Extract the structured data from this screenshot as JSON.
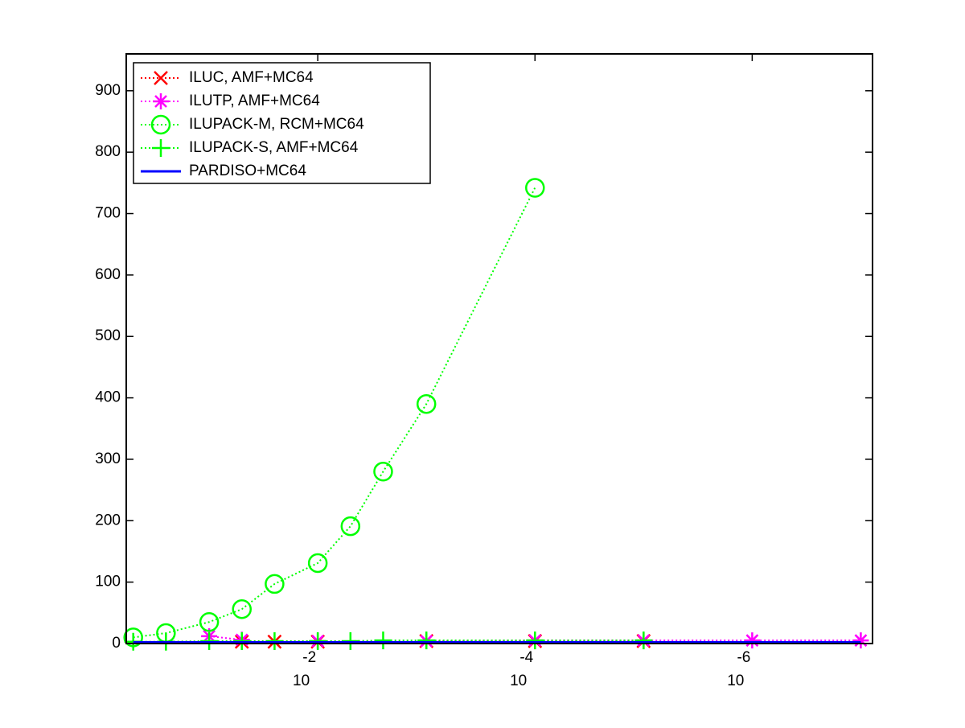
{
  "chart_data": {
    "type": "line",
    "x": [
      0.5,
      0.25,
      0.1,
      0.05,
      0.025,
      0.01,
      0.005,
      0.0025,
      0.001,
      0.0001,
      1e-05,
      1e-06,
      1e-07
    ],
    "xlim": [
      0.58,
      7.8e-08
    ],
    "xscale": "log",
    "xreverse": true,
    "xticks": [
      {
        "value": 0.01,
        "label": "10",
        "exponent": "-2"
      },
      {
        "value": 0.0001,
        "label": "10",
        "exponent": "-4"
      },
      {
        "value": 1e-06,
        "label": "10",
        "exponent": "-6"
      }
    ],
    "ylim": [
      0,
      960
    ],
    "yticks": [
      0,
      100,
      200,
      300,
      400,
      500,
      600,
      700,
      800,
      900
    ],
    "legend": "upper left",
    "series": [
      {
        "name": "ILUC, AMF+MC64",
        "color": "#ff0000",
        "marker": "x",
        "dash": "dotted",
        "values": [
          null,
          null,
          null,
          3,
          3,
          3,
          null,
          null,
          4,
          4,
          4,
          null,
          null
        ]
      },
      {
        "name": "ILUTP, AMF+MC64",
        "color": "#ff00ff",
        "marker": "star",
        "dash": "dotted",
        "values": [
          null,
          null,
          12,
          6,
          null,
          4,
          null,
          null,
          4,
          5,
          5,
          5,
          5
        ]
      },
      {
        "name": "ILUPACK-M, RCM+MC64",
        "color": "#00ff00",
        "marker": "circle",
        "dash": "dotted",
        "values": [
          10,
          17,
          35,
          56,
          97,
          131,
          191,
          280,
          390,
          742,
          null,
          null,
          null
        ]
      },
      {
        "name": "ILUPACK-S, AMF+MC64",
        "color": "#00ff00",
        "marker": "plus",
        "dash": "dotted",
        "values": [
          3,
          3,
          4,
          4,
          4,
          4,
          4,
          5,
          5,
          5,
          5,
          null,
          null
        ]
      },
      {
        "name": "PARDISO+MC64",
        "color": "#0000ff",
        "marker": "none",
        "dash": "solid",
        "values": [
          2,
          2,
          2,
          2,
          2,
          2,
          2,
          2,
          2,
          2,
          2,
          2,
          2
        ]
      }
    ]
  }
}
